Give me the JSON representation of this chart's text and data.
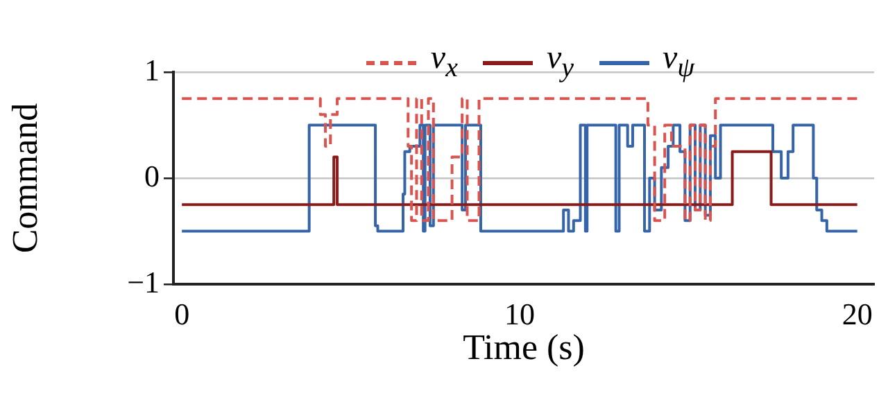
{
  "chart_data": {
    "type": "step",
    "xlabel": "Time (s)",
    "ylabel": "Command",
    "xlim": [
      -0.25,
      20.5
    ],
    "xticks": [
      0,
      10,
      20
    ],
    "ylim": [
      -1,
      1
    ],
    "yticks": [
      -1,
      0,
      1
    ],
    "grid": "y",
    "legend": "top",
    "marker": "none",
    "series": [
      {
        "name": "v$_{x}$",
        "color": "#d9534f",
        "line_style": "dashed",
        "x": [
          0,
          4.1,
          4.25,
          4.4,
          4.6,
          6.7,
          6.8,
          6.95,
          7.1,
          7.3,
          7.45,
          8.0,
          8.3,
          8.45,
          8.8,
          13.8,
          14.0,
          14.3,
          14.5,
          14.9,
          15.05,
          15.2,
          15.35,
          15.5,
          15.65,
          15.8,
          20
        ],
        "values": [
          0.75,
          0.6,
          0.3,
          0.6,
          0.75,
          0.3,
          -0.4,
          0.75,
          -0.4,
          0.75,
          -0.4,
          0.2,
          0.75,
          -0.4,
          0.75,
          0.5,
          -0.4,
          0.5,
          0.3,
          -0.4,
          0.5,
          -0.3,
          0.5,
          -0.4,
          0.3,
          0.75,
          0.75
        ]
      },
      {
        "name": "v$_{y}$",
        "color": "#8b1a1a",
        "line_style": "solid",
        "x": [
          0,
          4.5,
          4.6,
          16.3,
          17.45,
          20
        ],
        "values": [
          -0.25,
          0.2,
          -0.25,
          0.25,
          -0.25,
          -0.25
        ]
      },
      {
        "name": "v$_{ψ}$",
        "color": "#3564a8",
        "line_style": "solid",
        "x": [
          0,
          3.77,
          5.73,
          5.8,
          6.55,
          6.6,
          6.75,
          7.05,
          7.15,
          7.2,
          7.35,
          7.45,
          7.55,
          8.3,
          8.4,
          8.85,
          11.3,
          11.45,
          11.6,
          11.8,
          11.95,
          12.0,
          12.85,
          12.95,
          13.2,
          13.35,
          13.7,
          13.85,
          14.0,
          14.2,
          14.4,
          14.55,
          14.75,
          14.9,
          15.05,
          15.2,
          15.35,
          15.5,
          15.65,
          15.8,
          15.95,
          17.5,
          17.75,
          17.95,
          18.1,
          18.7,
          18.8,
          18.95,
          19.1,
          20
        ],
        "values": [
          -0.5,
          0.5,
          -0.45,
          -0.5,
          -0.15,
          0.25,
          0.3,
          0.5,
          -0.5,
          0.5,
          -0.45,
          0.5,
          0.5,
          -0.3,
          0.5,
          -0.5,
          -0.3,
          -0.5,
          -0.4,
          0.5,
          -0.5,
          0.5,
          -0.5,
          0.5,
          0.3,
          0.5,
          -0.5,
          0.0,
          -0.3,
          0.1,
          0.3,
          0.5,
          0.25,
          -0.4,
          0.5,
          -0.3,
          0.5,
          -0.35,
          0.4,
          0.0,
          0.5,
          0.25,
          0.0,
          0.25,
          0.5,
          0.0,
          -0.3,
          -0.4,
          -0.5,
          -0.5
        ]
      }
    ]
  }
}
